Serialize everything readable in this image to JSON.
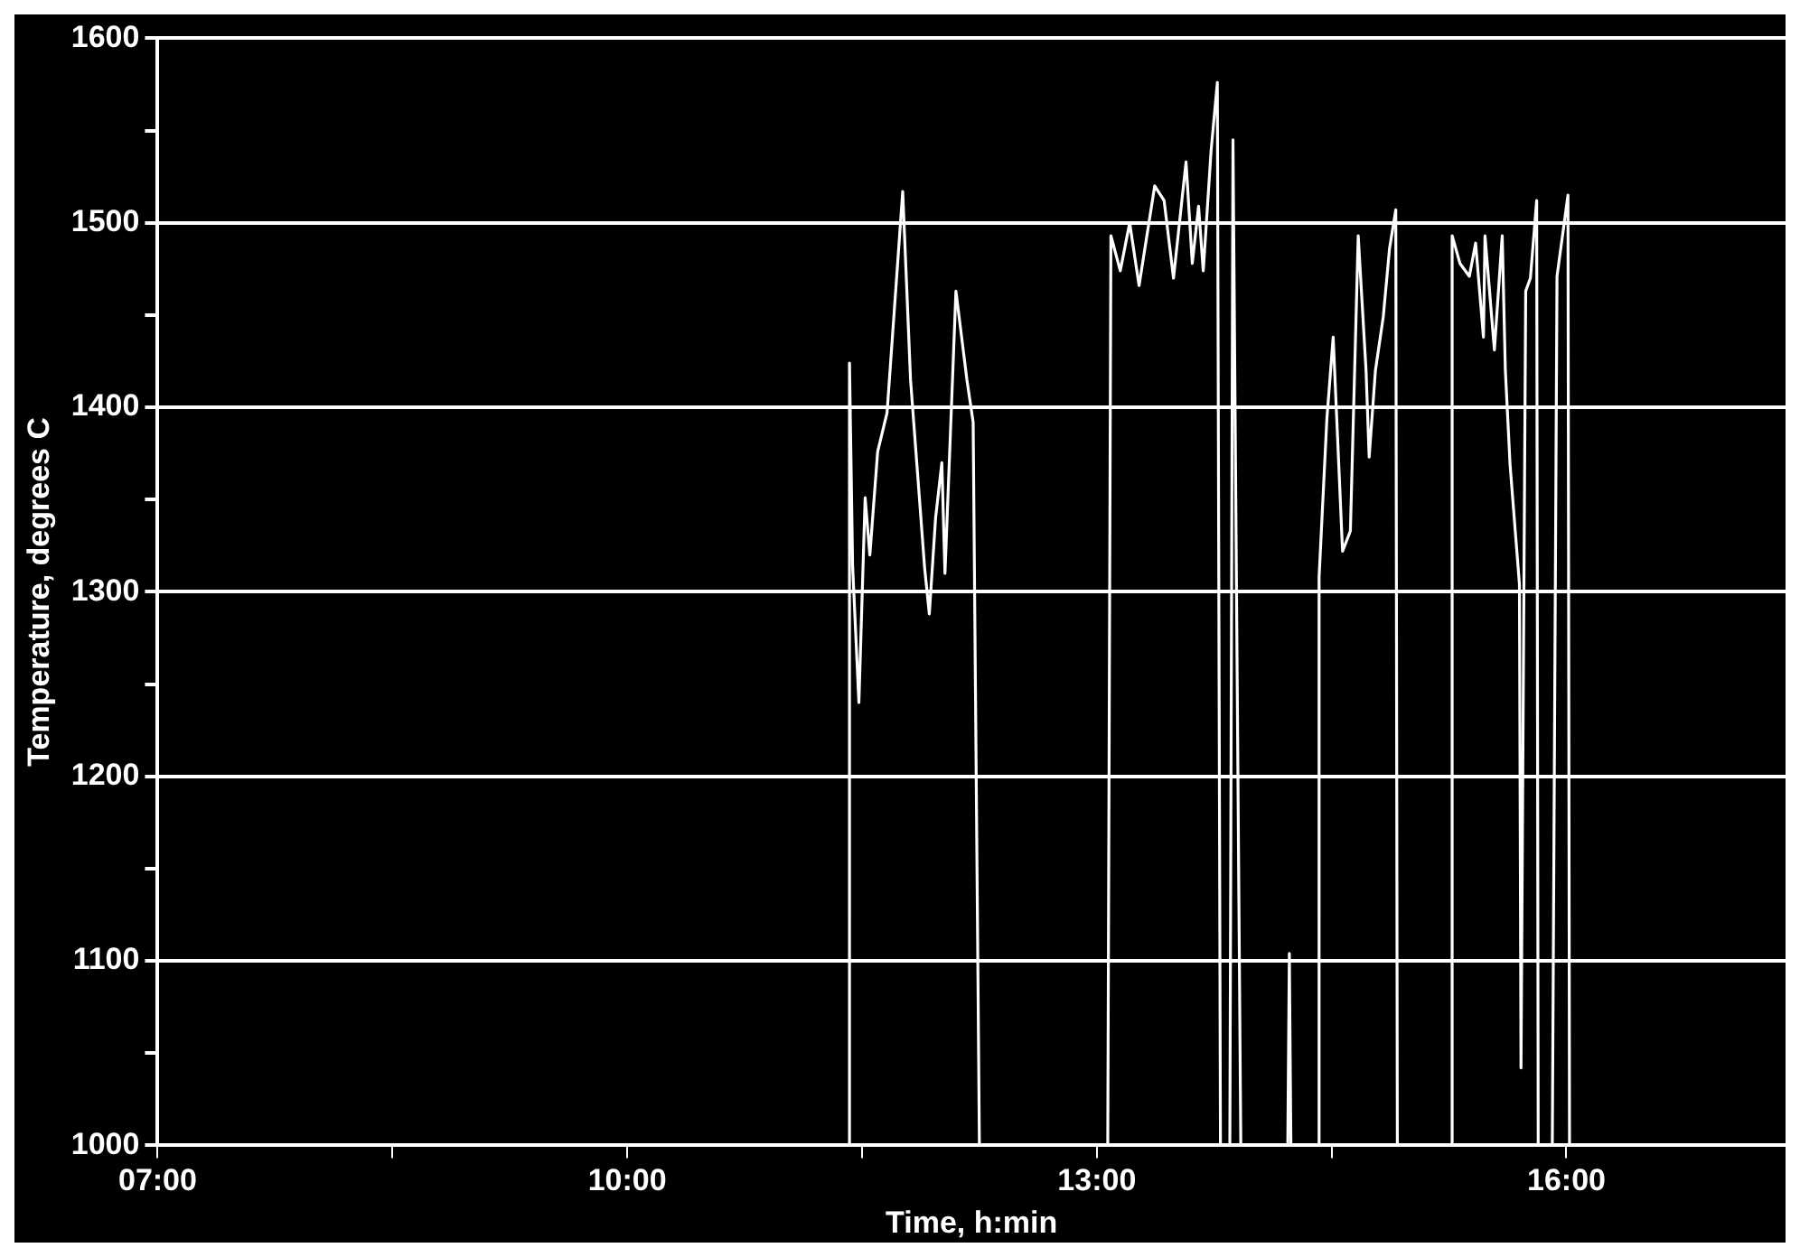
{
  "chart_data": {
    "type": "line",
    "xlabel": "Time, h:min",
    "ylabel": "Temperature, degrees C",
    "xlim": [
      7,
      17.4
    ],
    "ylim": [
      1000,
      1600
    ],
    "xticks": [
      {
        "value": 7,
        "label": "07:00"
      },
      {
        "value": 8.5,
        "label": null
      },
      {
        "value": 10,
        "label": "10:00"
      },
      {
        "value": 11.5,
        "label": null
      },
      {
        "value": 13,
        "label": "13:00"
      },
      {
        "value": 14.5,
        "label": null
      },
      {
        "value": 16,
        "label": "16:00"
      }
    ],
    "yticks": [
      1000,
      {
        "value": 1050,
        "label": null
      },
      1100,
      {
        "value": 1150,
        "label": null
      },
      1200,
      {
        "value": 1250,
        "label": null
      },
      1300,
      {
        "value": 1350,
        "label": null
      },
      1400,
      {
        "value": 1450,
        "label": null
      },
      1500,
      {
        "value": 1550,
        "label": null
      },
      1600
    ],
    "grid": "y",
    "legend": false,
    "marker": "none",
    "line_style": "solid",
    "series": [
      {
        "color": "#ffffff",
        "x": [
          11.42,
          11.42,
          11.44,
          11.48,
          11.52,
          11.55,
          11.6,
          11.66,
          11.76,
          11.81,
          11.9,
          11.93,
          11.97,
          12.01,
          12.03,
          12.1,
          12.17,
          12.21,
          12.25,
          13.07,
          13.09,
          13.15,
          13.21,
          13.27,
          13.37,
          13.43,
          13.49,
          13.57,
          13.61,
          13.65,
          13.68,
          13.73,
          13.77,
          13.79,
          13.85,
          13.87,
          13.92,
          14.22,
          14.23,
          14.24,
          14.42,
          14.42,
          14.47,
          14.51,
          14.57,
          14.62,
          14.67,
          14.72,
          14.74,
          14.78,
          14.83,
          14.87,
          14.91,
          14.92,
          15.27,
          15.27,
          15.32,
          15.38,
          15.42,
          15.47,
          15.48,
          15.54,
          15.59,
          15.61,
          15.64,
          15.7,
          15.71,
          15.74,
          15.77,
          15.81,
          15.82,
          15.91,
          15.94,
          16.01,
          16.02
        ],
        "values": [
          1000,
          1424,
          1314,
          1240,
          1351,
          1320,
          1376,
          1397,
          1517,
          1415,
          1313,
          1288,
          1340,
          1370,
          1310,
          1463,
          1415,
          1392,
          1000,
          1000,
          1493,
          1474,
          1500,
          1466,
          1520,
          1512,
          1470,
          1533,
          1478,
          1509,
          1474,
          1539,
          1576,
          1000,
          1000,
          1545,
          1000,
          1000,
          1104,
          1000,
          1000,
          1308,
          1394,
          1438,
          1322,
          1333,
          1493,
          1420,
          1373,
          1420,
          1449,
          1486,
          1507,
          1000,
          1000,
          1493,
          1478,
          1471,
          1489,
          1438,
          1493,
          1431,
          1493,
          1420,
          1369,
          1304,
          1042,
          1463,
          1470,
          1512,
          1000,
          1000,
          1471,
          1515,
          1000
        ]
      }
    ]
  }
}
